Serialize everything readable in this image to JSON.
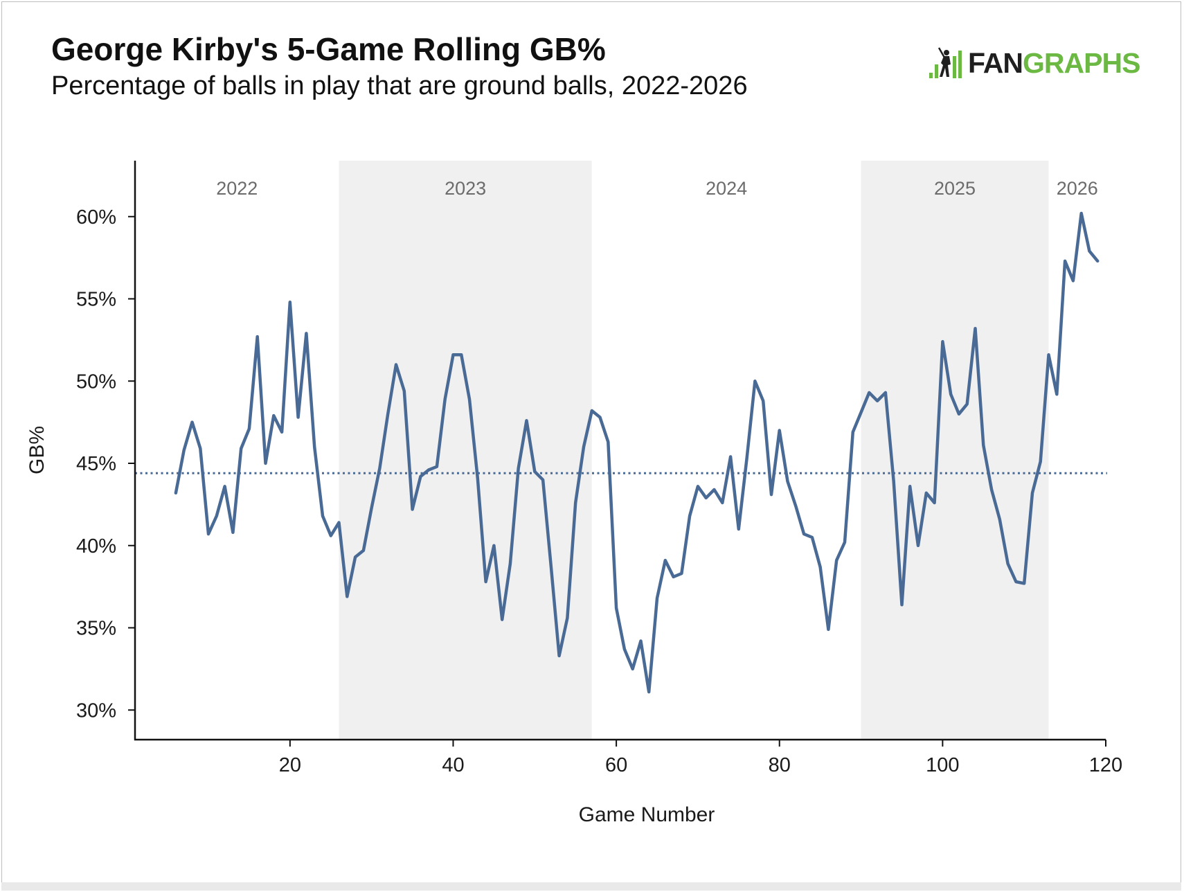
{
  "header": {
    "title": "George Kirby's 5-Game Rolling GB%",
    "subtitle": "Percentage of balls in play that are ground balls, 2022-2026"
  },
  "logo": {
    "part1": "FAN",
    "part2": "GRAPHS",
    "brand_color": "#6bb843",
    "dark_color": "#1f1f1f"
  },
  "colors": {
    "line": "#4a6a96",
    "band": "#f0f0f0",
    "axis": "#111111"
  },
  "chart_data": {
    "type": "line",
    "title": "George Kirby's 5-Game Rolling GB%",
    "subtitle": "Percentage of balls in play that are ground balls, 2022-2026",
    "xlabel": "Game Number",
    "ylabel": "GB%",
    "xlim": [
      1,
      120
    ],
    "ylim": [
      28.2,
      63.4
    ],
    "x_ticks": [
      20,
      40,
      60,
      80,
      100,
      120
    ],
    "y_ticks": [
      30,
      35,
      40,
      45,
      50,
      55,
      60
    ],
    "y_tick_labels": [
      "30%",
      "35%",
      "40%",
      "45%",
      "50%",
      "55%",
      "60%"
    ],
    "grid": false,
    "reference_line": {
      "value": 44.4,
      "style": "dotted"
    },
    "season_bands": [
      {
        "label": "2022",
        "start": 1,
        "end": 26,
        "shaded": false
      },
      {
        "label": "2023",
        "start": 26,
        "end": 57,
        "shaded": true
      },
      {
        "label": "2024",
        "start": 57,
        "end": 90,
        "shaded": false
      },
      {
        "label": "2025",
        "start": 90,
        "end": 113,
        "shaded": true
      },
      {
        "label": "2026",
        "start": 113,
        "end": 120,
        "shaded": false
      }
    ],
    "series": [
      {
        "x": [
          6,
          7,
          8,
          9,
          10,
          11,
          12,
          13,
          14,
          15,
          16,
          17,
          18,
          19,
          20,
          21,
          22,
          23,
          24,
          25,
          26,
          27,
          28,
          29,
          30,
          31,
          32,
          33,
          34,
          35,
          36,
          37,
          38,
          39,
          40,
          41,
          42,
          43,
          44,
          45,
          46,
          47,
          48,
          49,
          50,
          51,
          52,
          53,
          54,
          55,
          56,
          57,
          58,
          59,
          60,
          61,
          62,
          63,
          64,
          65,
          66,
          67,
          68,
          69,
          70,
          71,
          72,
          73,
          74,
          75,
          76,
          77,
          78,
          79,
          80,
          81,
          82,
          83,
          84,
          85,
          86,
          87,
          88,
          89,
          90,
          91,
          92,
          93,
          94,
          95,
          96,
          97,
          98,
          99,
          100,
          101,
          102,
          103,
          104,
          105,
          106,
          107,
          108,
          109,
          110,
          111,
          112,
          113,
          114,
          115,
          116,
          117,
          118,
          119
        ],
        "values": [
          43.2,
          45.8,
          47.5,
          45.9,
          40.7,
          41.8,
          43.6,
          40.8,
          45.9,
          47.1,
          52.7,
          45.0,
          47.9,
          46.9,
          54.8,
          47.8,
          52.9,
          46.0,
          41.8,
          40.6,
          41.4,
          36.9,
          39.3,
          39.7,
          42.3,
          44.7,
          48.0,
          51.0,
          49.4,
          42.2,
          44.2,
          44.6,
          44.8,
          48.9,
          51.6,
          51.6,
          48.9,
          44.1,
          37.8,
          40.0,
          35.5,
          38.9,
          44.7,
          47.6,
          44.5,
          44.0,
          38.7,
          33.3,
          35.6,
          42.6,
          46.0,
          48.2,
          47.8,
          46.3,
          36.2,
          33.7,
          32.5,
          34.2,
          31.1,
          36.8,
          39.1,
          38.1,
          38.3,
          41.8,
          43.6,
          42.9,
          43.4,
          42.6,
          45.4,
          41.0,
          45.3,
          50.0,
          48.8,
          43.1,
          47.0,
          43.9,
          42.4,
          40.7,
          40.5,
          38.7,
          34.9,
          39.1,
          40.2,
          46.9,
          48.1,
          49.3,
          48.8,
          49.3,
          43.9,
          36.4,
          43.6,
          40.0,
          43.2,
          42.6,
          52.4,
          49.2,
          48.0,
          48.6,
          53.2,
          46.1,
          43.4,
          41.6,
          38.9,
          37.8,
          37.7,
          43.2,
          45.1,
          51.6,
          49.2,
          57.3,
          56.1,
          60.2,
          57.9,
          57.3
        ]
      }
    ]
  }
}
